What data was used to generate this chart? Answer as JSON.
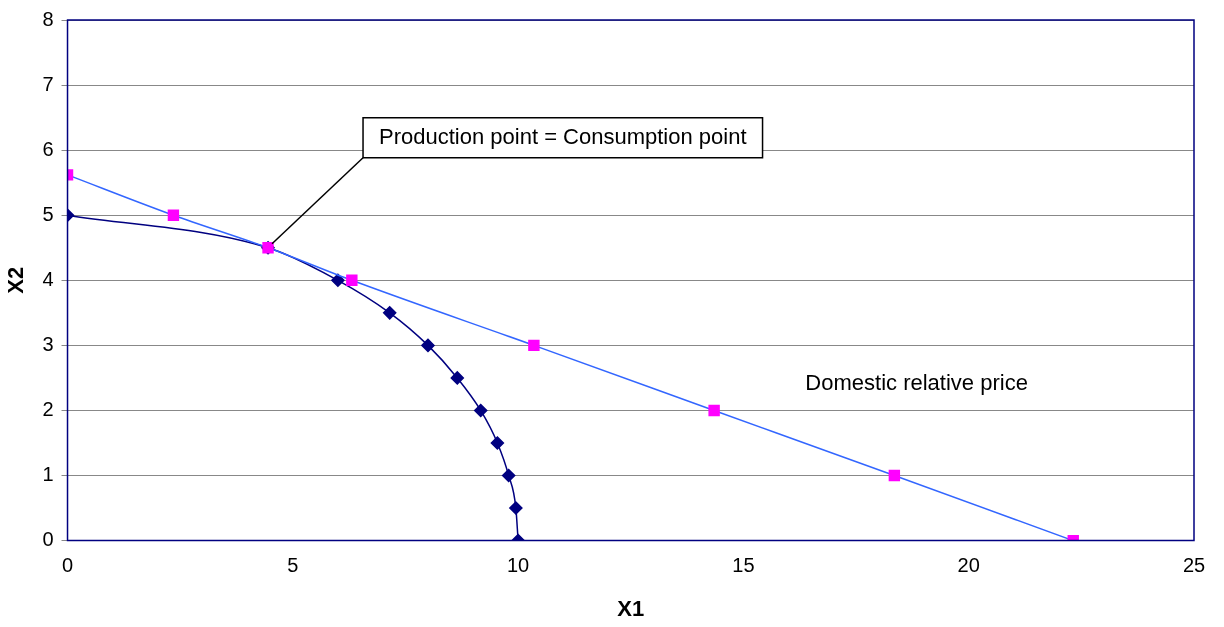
{
  "chart_data": {
    "type": "line",
    "xlabel": "X1",
    "ylabel": "X2",
    "xlim": [
      0,
      25
    ],
    "xticks": [
      0,
      5,
      10,
      15,
      20,
      25
    ],
    "ylim": [
      0,
      8
    ],
    "yticks": [
      0,
      1,
      2,
      3,
      4,
      5,
      6,
      7,
      8
    ],
    "grid": "y",
    "legend": false,
    "series": [
      {
        "color": "#000080",
        "marker": "diamond",
        "x": [
          0,
          4.45,
          6.0,
          7.15,
          8.0,
          8.65,
          9.17,
          9.54,
          9.79,
          9.95,
          10.0
        ],
        "values": [
          5,
          4.5,
          4,
          3.5,
          3,
          2.5,
          2,
          1.5,
          1,
          0.5,
          0
        ]
      },
      {
        "color": "#3366ff",
        "colors": [
          "#ff00ff",
          "#ff00ff",
          "#ff00ff",
          "#ff00ff",
          "#ff00ff",
          "#ff00ff",
          "#ff00ff",
          "#ff00ff"
        ],
        "marker": "square",
        "x": [
          0,
          2.35,
          4.45,
          6.31,
          10.35,
          14.35,
          18.35,
          22.32
        ],
        "values": [
          5.62,
          5,
          4.5,
          4,
          3,
          2,
          1,
          0
        ]
      }
    ],
    "annotations": [
      {
        "text": "Production point = Consumption point",
        "x": 4.45,
        "y": 4.5
      },
      "Domestic relative price"
    ]
  }
}
